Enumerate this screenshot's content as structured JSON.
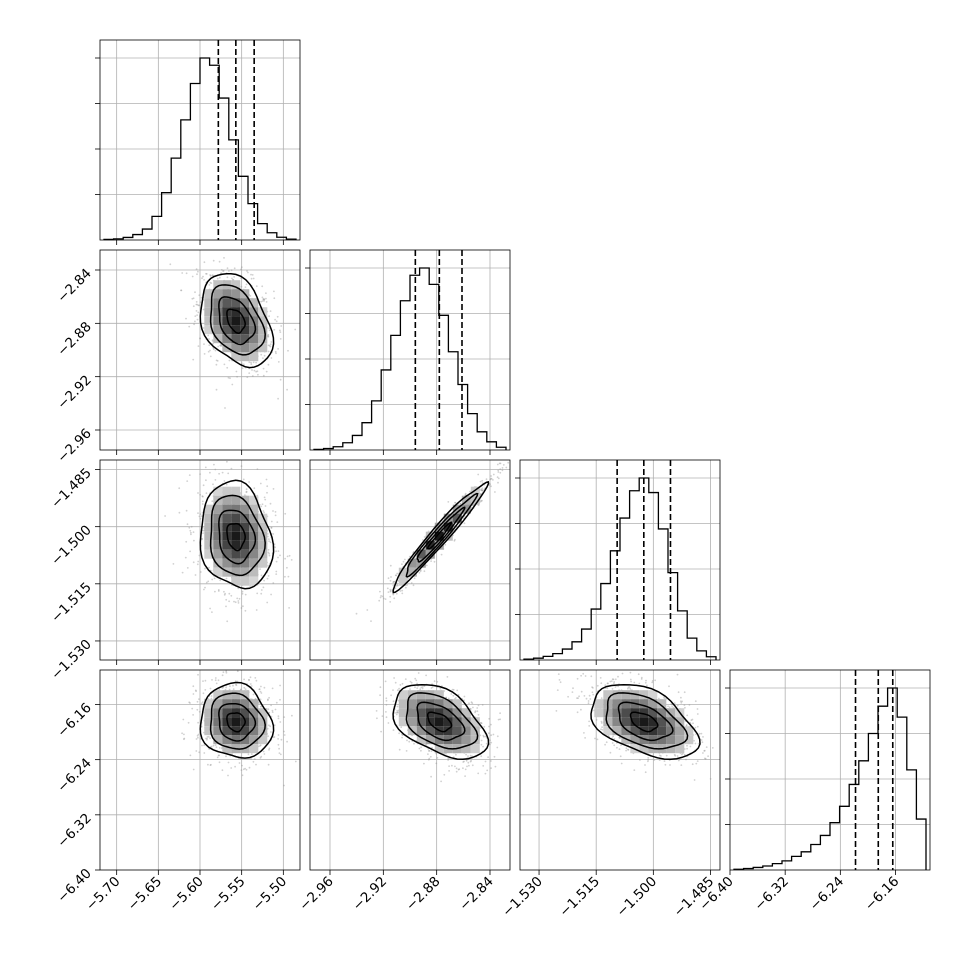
{
  "chart_data": {
    "type": "corner",
    "title": "",
    "n_params": 4,
    "grid": true,
    "ranges": [
      [
        -5.72,
        -5.48
      ],
      [
        -2.975,
        -2.825
      ],
      [
        -1.535,
        -1.4825
      ],
      [
        -6.4,
        -6.11
      ]
    ],
    "medians": [
      -5.557,
      -2.878,
      -1.5025,
      -6.185
    ],
    "quantiles_16_84": [
      [
        -5.578,
        -5.535
      ],
      [
        -2.896,
        -2.861
      ],
      [
        -1.5095,
        -1.4955
      ],
      [
        -6.218,
        -6.164
      ]
    ],
    "ticks": [
      [
        "-5.70",
        "-5.65",
        "-5.60",
        "-5.55",
        "-5.50"
      ],
      [
        "-2.96",
        "-2.92",
        "-2.88",
        "-2.84"
      ],
      [
        "-1.530",
        "-1.515",
        "-1.500",
        "-1.485"
      ],
      [
        "-6.40",
        "-6.32",
        "-6.24",
        "-6.16"
      ]
    ],
    "histograms": [
      [
        0.003,
        0.006,
        0.014,
        0.03,
        0.06,
        0.13,
        0.26,
        0.45,
        0.66,
        0.86,
        1.0,
        0.96,
        0.78,
        0.55,
        0.35,
        0.2,
        0.09,
        0.04,
        0.015,
        0.005
      ],
      [
        0.003,
        0.008,
        0.018,
        0.04,
        0.08,
        0.15,
        0.27,
        0.44,
        0.63,
        0.82,
        0.96,
        1.0,
        0.91,
        0.74,
        0.54,
        0.36,
        0.2,
        0.1,
        0.045,
        0.015
      ],
      [
        0.005,
        0.01,
        0.02,
        0.035,
        0.06,
        0.1,
        0.17,
        0.28,
        0.42,
        0.6,
        0.78,
        0.93,
        1.0,
        0.92,
        0.72,
        0.48,
        0.27,
        0.12,
        0.05,
        0.018
      ],
      [
        0.004,
        0.008,
        0.014,
        0.022,
        0.035,
        0.05,
        0.075,
        0.1,
        0.14,
        0.19,
        0.26,
        0.35,
        0.47,
        0.6,
        0.75,
        0.9,
        1.0,
        0.84,
        0.55,
        0.28
      ]
    ]
  }
}
